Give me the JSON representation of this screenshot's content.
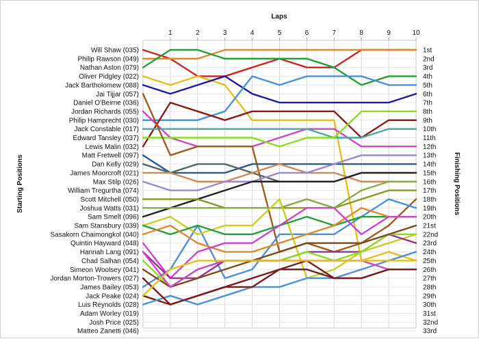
{
  "chart_data": {
    "type": "line",
    "title": "Laps",
    "ylabel_left": "Starting Positions",
    "ylabel_right": "Finishing Positions",
    "x": [
      0,
      1,
      2,
      3,
      4,
      5,
      6,
      7,
      8,
      9,
      10
    ],
    "xticks": [
      "1",
      "2",
      "3",
      "4",
      "5",
      "6",
      "7",
      "8",
      "9",
      "10"
    ],
    "yrange": [
      1,
      33
    ],
    "grid": true,
    "start_labels": [
      "Will Shaw (035)",
      "Philip Rawson (049)",
      "Nathan Aston (079)",
      "Oliver Pidgley (022)",
      "Jack Bartholomew (088)",
      "Jai Tijjar (057)",
      "Daniel O'Beirne (036)",
      "Jordan Richards (055)",
      "Philip Hamprecht (030)",
      "Jack Constable (017)",
      "Edward Tansley (037)",
      "Lewis Malin (032)",
      "Matt Fretwell (097)",
      "Dan Kelly (029)",
      "James Moorcroft (021)",
      "Max Stilp (026)",
      "William Tregurtha (074)",
      "Scott Mitchell (050)",
      "Joshua Watts (031)",
      "Sam Smelt (096)",
      "Sam Stansbury (039)",
      "Sasakorn Chaimongkol (040)",
      "Quintin Hayward (048)",
      "Hannah Lang (091)",
      "Chad Salhan (054)",
      "Simeon Woolsey (041)",
      "Jordan Morton-Trowers (027)",
      "James Bailey (053)",
      "Jack Peake (024)",
      "Luis Reynolds (028)",
      "Adam Worley (019)",
      "Josh Price (025)",
      "Matteo Zanetti (046)"
    ],
    "finish_labels": [
      "1st",
      "2nd",
      "3rd",
      "4th",
      "5th",
      "6th",
      "7th",
      "8th",
      "9th",
      "10th",
      "11th",
      "12th",
      "13th",
      "14th",
      "15th",
      "16th",
      "17th",
      "18th",
      "19th",
      "20th",
      "21st",
      "22nd",
      "23rd",
      "24th",
      "25th",
      "26th",
      "27th",
      "28th",
      "29th",
      "30th",
      "31st",
      "32nd",
      "33rd"
    ],
    "series": [
      {
        "color": "#cc2222",
        "values": [
          1,
          2,
          4,
          4,
          3,
          2,
          3,
          3,
          1,
          1,
          1
        ]
      },
      {
        "color": "#e08830",
        "values": [
          2,
          2,
          2,
          1,
          1,
          1,
          1,
          1,
          1,
          1,
          1
        ]
      },
      {
        "color": "#22a033",
        "values": [
          3,
          1,
          1,
          2,
          2,
          2,
          2,
          3,
          5,
          4,
          4
        ]
      },
      {
        "color": "#e0c020",
        "values": [
          4,
          5,
          4,
          5,
          9,
          9,
          9,
          9,
          25,
          24,
          25
        ]
      },
      {
        "color": "#1a1aa8",
        "values": [
          5,
          6,
          5,
          4,
          6,
          7,
          7,
          7,
          7,
          7,
          6
        ]
      },
      {
        "color": "#4a90d8",
        "values": [
          9,
          9,
          9,
          8,
          4,
          5,
          4,
          4,
          4,
          5,
          5
        ]
      },
      {
        "color": "#8b1a1a",
        "values": [
          12,
          7,
          8,
          9,
          8,
          8,
          8,
          8,
          11,
          9,
          9
        ]
      },
      {
        "color": "#cc44cc",
        "values": [
          8,
          11,
          12,
          12,
          12,
          11,
          10,
          10,
          12,
          12,
          12
        ]
      },
      {
        "color": "#44aaa0",
        "values": [
          10,
          10,
          10,
          10,
          10,
          10,
          10,
          11,
          11,
          10,
          10
        ]
      },
      {
        "color": "#88dd22",
        "values": [
          11,
          11,
          11,
          11,
          11,
          12,
          11,
          11,
          8,
          8,
          8
        ]
      },
      {
        "color": "#a05a1a",
        "values": [
          6,
          13,
          12,
          12,
          12,
          24,
          23,
          24,
          23,
          21,
          18
        ]
      },
      {
        "color": "#4a90d8",
        "values": [
          28,
          26,
          21,
          27,
          26,
          22,
          22,
          22,
          20,
          18,
          19
        ]
      },
      {
        "color": "#2a5a8a",
        "values": [
          13,
          15,
          15,
          15,
          14,
          14,
          14,
          14,
          14,
          14,
          14
        ]
      },
      {
        "color": "#556666",
        "values": [
          14,
          15,
          14,
          14,
          15,
          16,
          16,
          16,
          15,
          15,
          15
        ]
      },
      {
        "color": "#cc8855",
        "values": [
          15,
          15,
          16,
          16,
          15,
          14,
          15,
          15,
          16,
          16,
          16
        ]
      },
      {
        "color": "#9988cc",
        "values": [
          16,
          17,
          17,
          16,
          16,
          15,
          15,
          14,
          13,
          13,
          13
        ]
      },
      {
        "color": "#222222",
        "values": [
          20,
          19,
          18,
          17,
          16,
          16,
          16,
          16,
          15,
          15,
          15
        ]
      },
      {
        "color": "#889922",
        "values": [
          18,
          18,
          18,
          19,
          19,
          19,
          19,
          19,
          18,
          17,
          17
        ]
      },
      {
        "color": "#88aa44",
        "values": [
          19,
          19,
          19,
          19,
          19,
          19,
          18,
          19,
          17,
          16,
          16
        ]
      },
      {
        "color": "#cccc22",
        "values": [
          21,
          20,
          22,
          21,
          21,
          18,
          27,
          26,
          24,
          23,
          22
        ]
      },
      {
        "color": "#22a033",
        "values": [
          21,
          22,
          21,
          22,
          22,
          21,
          20,
          21,
          20,
          20,
          20
        ]
      },
      {
        "color": "#e08830",
        "values": [
          22,
          21,
          23,
          24,
          24,
          23,
          22,
          21,
          19,
          20,
          20
        ]
      },
      {
        "color": "#cc44cc",
        "values": [
          23,
          27,
          24,
          23,
          23,
          21,
          19,
          19,
          22,
          20,
          20
        ]
      },
      {
        "color": "#993399",
        "values": [
          24,
          27,
          27,
          25,
          25,
          25,
          24,
          24,
          24,
          22,
          23
        ]
      },
      {
        "color": "#88dd22",
        "values": [
          25,
          28,
          26,
          25,
          25,
          25,
          24,
          25,
          24,
          22,
          22
        ]
      },
      {
        "color": "#7a4a1a",
        "values": [
          26,
          28,
          27,
          26,
          25,
          24,
          23,
          23,
          23,
          22,
          21
        ]
      },
      {
        "color": "#7a1a1a",
        "values": [
          29,
          30,
          29,
          28,
          27,
          26,
          25,
          27,
          27,
          26,
          26
        ]
      },
      {
        "color": "#4a90d8",
        "values": [
          30,
          29,
          30,
          29,
          28,
          28,
          27,
          27,
          26,
          25,
          24
        ]
      },
      {
        "color": "#cc44cc",
        "values": [
          24,
          28,
          26,
          25,
          25,
          25,
          25,
          25,
          25,
          26,
          26
        ]
      },
      {
        "color": "#7a1a1a",
        "values": [
          27,
          30,
          29,
          28,
          28,
          26,
          26,
          27,
          27,
          26,
          26
        ]
      },
      {
        "color": "#e0c020",
        "values": [
          29,
          26,
          25,
          25,
          25,
          25,
          25,
          25,
          25,
          25,
          25
        ]
      }
    ]
  }
}
